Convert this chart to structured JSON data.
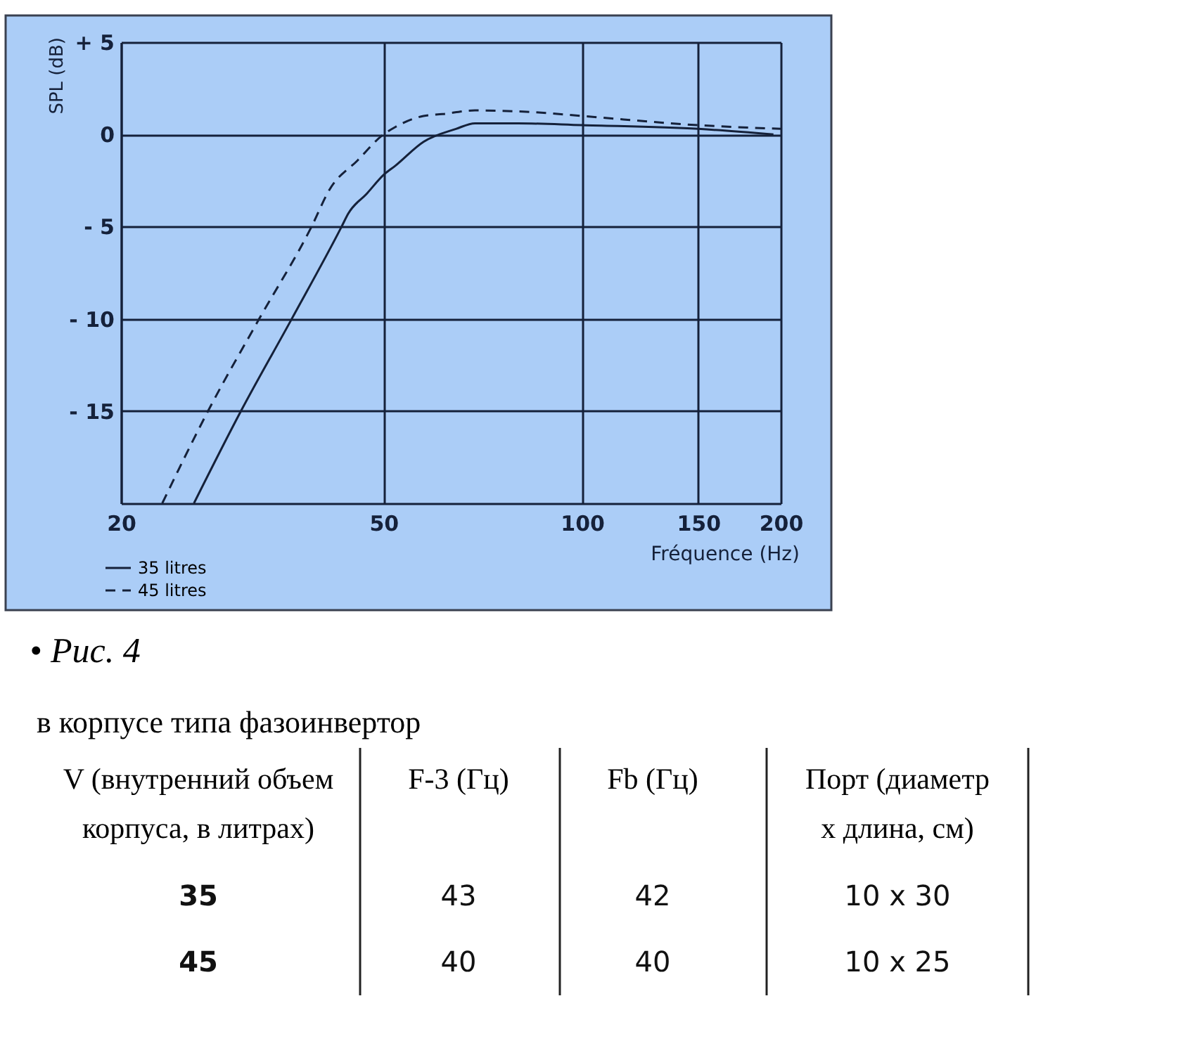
{
  "chart_data": [
    {
      "type": "line",
      "xlabel": "Fréquence (Hz)",
      "ylabel": "SPL (dB)",
      "series": [
        {
          "name": "35 litres",
          "color": "#15213a",
          "line_style": "solid",
          "x": [
            25.8,
            30.4,
            36.3,
            43.2,
            44.2,
            47.2,
            50,
            52.1,
            57.5,
            64.4,
            68.8,
            80,
            100,
            150,
            195
          ],
          "values": [
            -20,
            -15,
            -10,
            -5,
            -4.3,
            -3.2,
            -2.2,
            -1.7,
            -0.4,
            0.3,
            0.6,
            0.6,
            0.5,
            0.3,
            0
          ]
        },
        {
          "name": "45 litres",
          "color": "#15213a",
          "line_style": "dashed",
          "x": [
            23.1,
            27.1,
            32.4,
            38.9,
            41.4,
            45.7,
            50,
            52.1,
            57.5,
            61.4,
            68.8,
            85,
            100,
            150,
            200
          ],
          "values": [
            -20,
            -15,
            -10,
            -5,
            -3,
            -1.4,
            0,
            0.4,
            1,
            1.1,
            1.3,
            1.2,
            1,
            0.5,
            0.3
          ]
        }
      ],
      "xlim": [
        20,
        200
      ],
      "ylim": [
        -20,
        5
      ],
      "xticks": [
        20,
        50,
        100,
        150,
        200
      ],
      "yticks": [
        {
          "value": 5,
          "label": "+ 5"
        },
        0,
        {
          "value": -5,
          "label": "- 5"
        },
        {
          "value": -10,
          "label": "- 10"
        },
        {
          "value": -15,
          "label": "- 15"
        }
      ],
      "log": "x",
      "grid": true,
      "legend": "bottom left",
      "marker": "none",
      "annotations": [
        "• Рис. 4"
      ]
    },
    {
      "type": "other",
      "title": "в корпусе типа фазоинвертор",
      "categories": [
        "V (внутренний объем корпуса, в литрах)",
        "F-3 (Гц)",
        "Fb (Гц)",
        "Порт (диаметр x длина, см)"
      ],
      "annotations": [
        "35",
        "43",
        "42",
        "10 x 30",
        "45",
        "40",
        "40",
        "10 x 25"
      ]
    }
  ]
}
